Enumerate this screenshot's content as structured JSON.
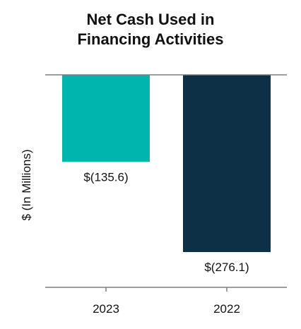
{
  "chart_data": {
    "type": "bar",
    "title": [
      "Net Cash Used in",
      "Financing Activities"
    ],
    "ylabel": "$ (In Millions)",
    "xlabel": "",
    "categories": [
      "2023",
      "2022"
    ],
    "values": [
      -135.6,
      -276.1
    ],
    "value_labels": [
      "$(135.6)",
      "$(276.1)"
    ],
    "colors": [
      "#00b5ad",
      "#0e3047"
    ],
    "axis_color": "#7f7f7f",
    "ylim": [
      -276.1,
      0
    ],
    "grid": false,
    "legend": "none"
  }
}
